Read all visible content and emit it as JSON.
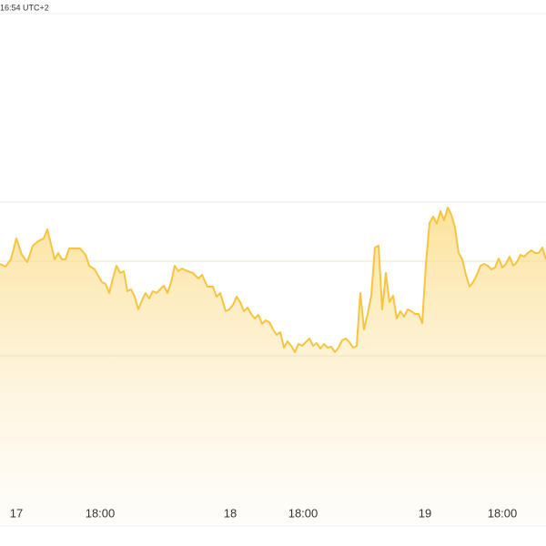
{
  "chart_data": {
    "type": "area",
    "timestamp": "16:54 UTC+2",
    "color": "#f5c542",
    "xlim": [
      0,
      600
    ],
    "ylim": [
      0,
      578
    ],
    "xticks": [
      {
        "value": 18,
        "label": "17"
      },
      {
        "value": 110,
        "label": "18:00"
      },
      {
        "value": 253,
        "label": "18"
      },
      {
        "value": 333,
        "label": "18:00"
      },
      {
        "value": 467,
        "label": "19"
      },
      {
        "value": 552,
        "label": "18:00"
      }
    ],
    "series": [
      {
        "x": [
          0,
          6,
          12,
          18,
          24,
          30,
          36,
          42,
          48,
          52,
          56,
          60,
          64,
          68,
          72,
          76,
          82,
          88,
          94,
          98,
          104,
          108,
          112,
          116,
          120,
          124,
          128,
          132,
          136,
          140,
          144,
          148,
          152,
          156,
          160,
          164,
          168,
          172,
          176,
          180,
          184,
          188,
          192,
          196,
          200,
          206,
          212,
          218,
          222,
          228,
          234,
          238,
          242,
          248,
          252,
          256,
          260,
          264,
          268,
          272,
          276,
          280,
          284,
          288,
          292,
          296,
          300,
          304,
          308,
          312,
          316,
          320,
          324,
          328,
          332,
          336,
          340,
          344,
          348,
          352,
          356,
          360,
          364,
          368,
          372,
          376,
          380,
          384,
          388,
          392,
          396,
          400,
          404,
          408,
          412,
          416,
          420,
          424,
          428,
          432,
          436,
          440,
          444,
          448,
          452,
          456,
          460,
          464,
          468,
          472,
          476,
          480,
          484,
          488,
          492,
          496,
          500,
          504,
          508,
          512,
          516,
          520,
          524,
          528,
          532,
          536,
          540,
          544,
          548,
          552,
          556,
          560,
          564,
          568,
          572,
          576,
          580,
          584,
          588,
          592,
          596,
          600
        ],
        "values": [
          288,
          285,
          293,
          316,
          298,
          290,
          308,
          313,
          316,
          326,
          310,
          293,
          300,
          293,
          293,
          305,
          305,
          305,
          298,
          286,
          282,
          275,
          268,
          266,
          256,
          272,
          286,
          278,
          280,
          258,
          260,
          252,
          238,
          248,
          256,
          250,
          258,
          256,
          260,
          264,
          256,
          268,
          286,
          280,
          283,
          280,
          278,
          272,
          276,
          263,
          263,
          252,
          256,
          236,
          238,
          243,
          252,
          246,
          236,
          240,
          233,
          228,
          232,
          222,
          226,
          224,
          216,
          210,
          213,
          196,
          203,
          198,
          191,
          200,
          198,
          202,
          206,
          198,
          201,
          195,
          200,
          196,
          197,
          191,
          196,
          204,
          206,
          202,
          196,
          198,
          256,
          216,
          233,
          253,
          306,
          308,
          238,
          278,
          246,
          253,
          228,
          236,
          230,
          238,
          236,
          233,
          233,
          223,
          288,
          333,
          340,
          332,
          346,
          336,
          350,
          342,
          328,
          300,
          293,
          276,
          263,
          268,
          276,
          286,
          288,
          286,
          282,
          284,
          294,
          284,
          288,
          296,
          286,
          290,
          298,
          296,
          300,
          303,
          300,
          300,
          306,
          293
        ]
      }
    ]
  }
}
